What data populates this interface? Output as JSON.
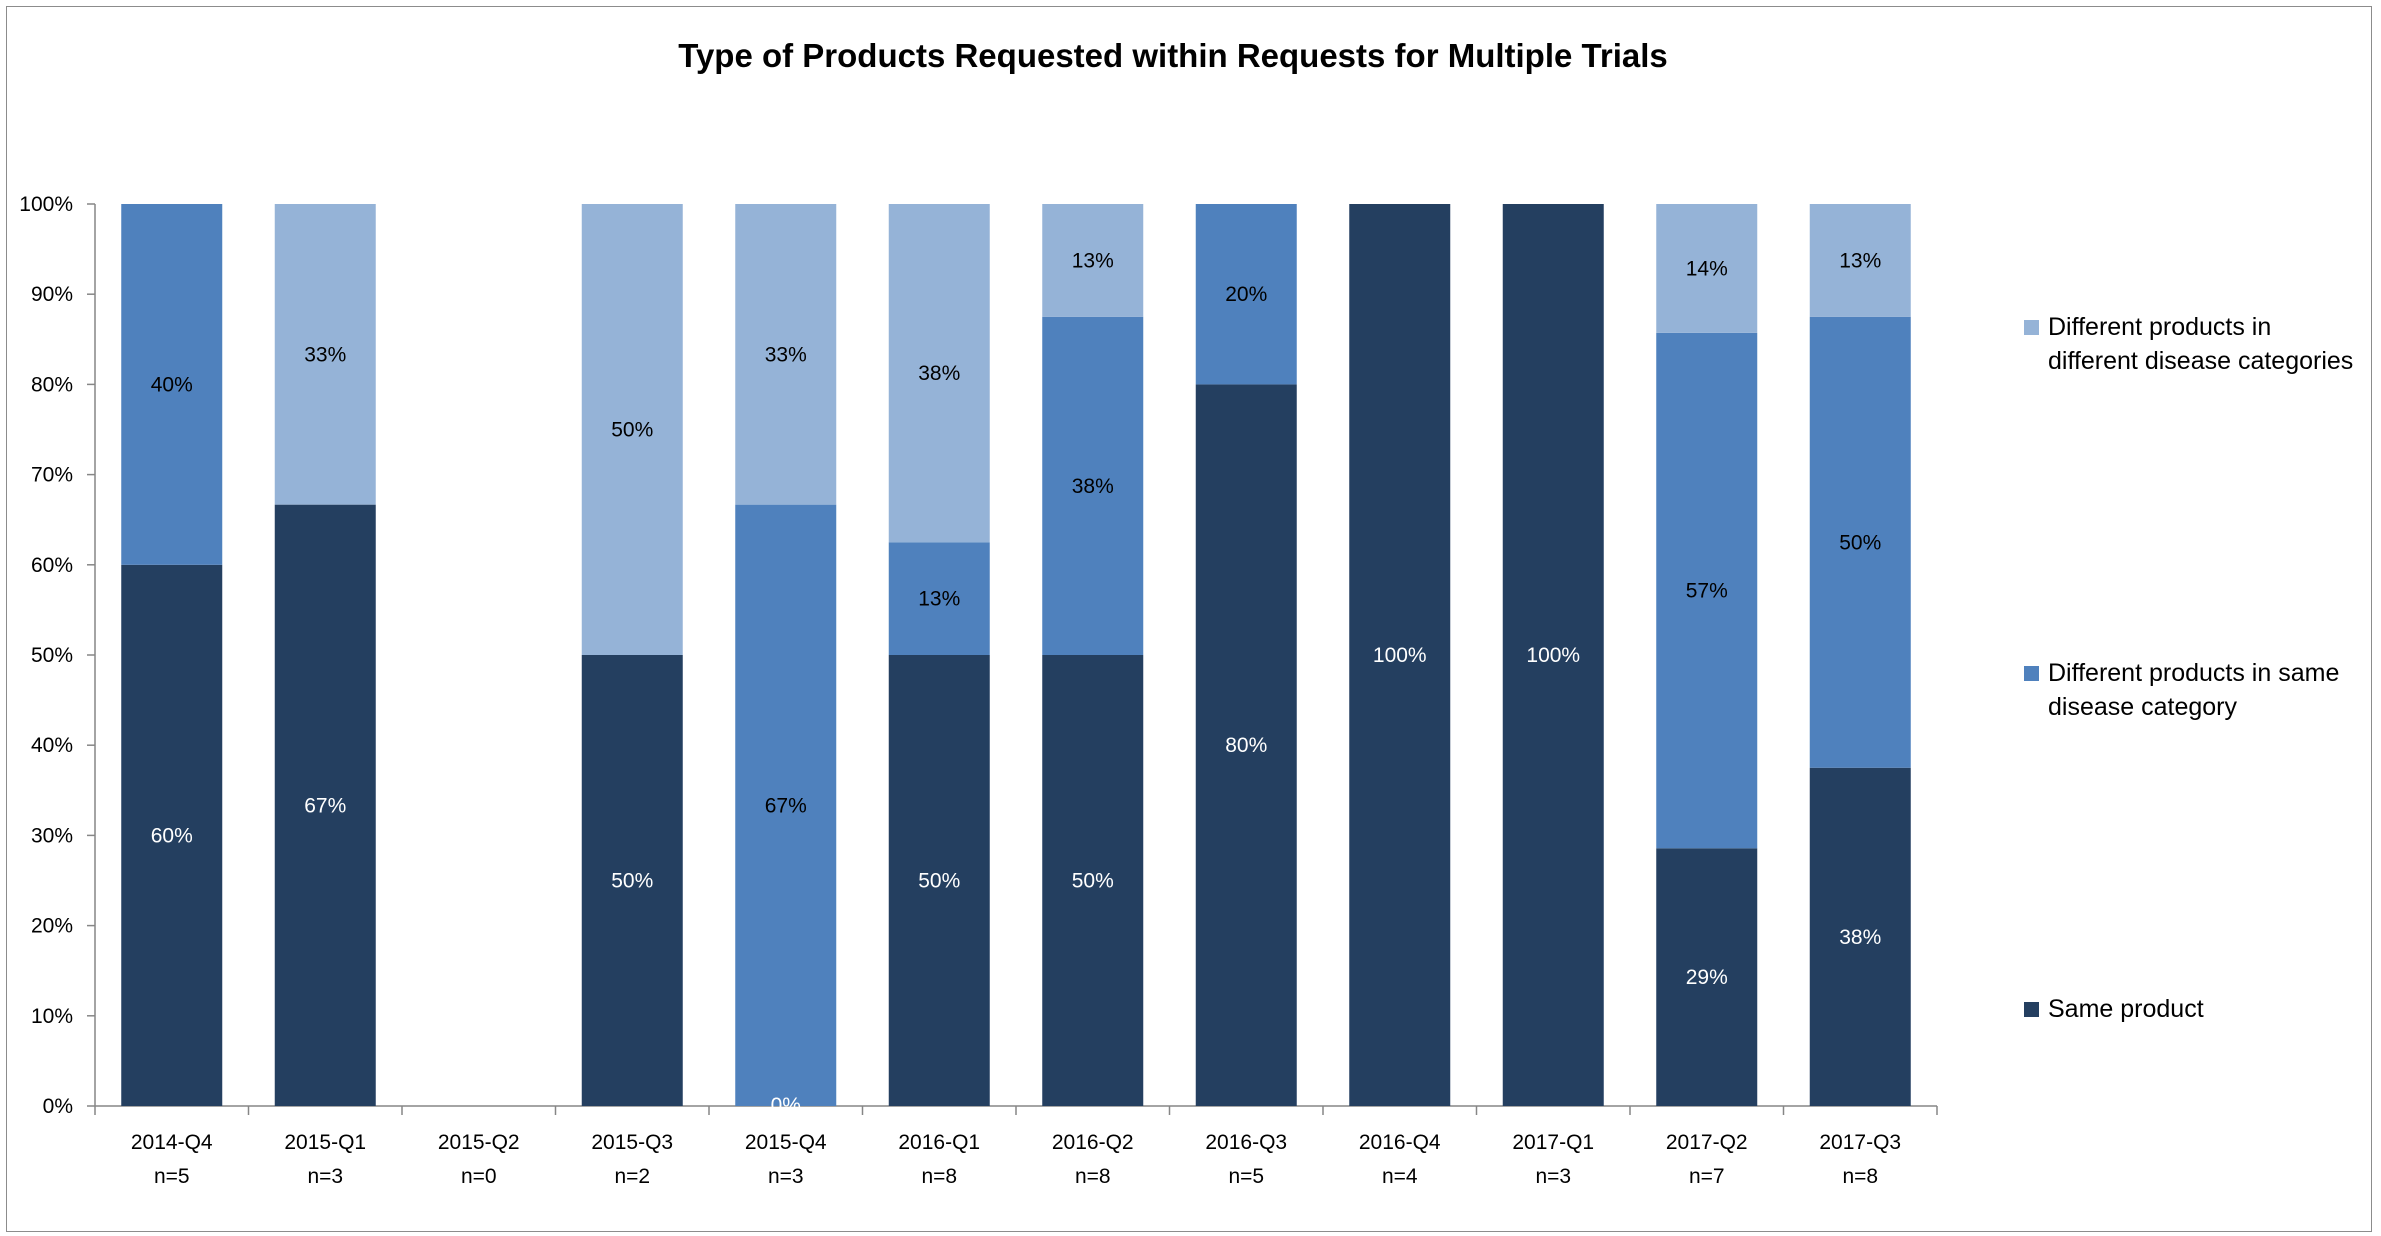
{
  "chart_data": {
    "type": "bar",
    "stacked": true,
    "title": "Type of Products Requested within Requests for Multiple Trials",
    "xlabel": "",
    "ylabel": "",
    "ylim": [
      0,
      100
    ],
    "y_ticks": [
      "0%",
      "10%",
      "20%",
      "30%",
      "40%",
      "50%",
      "60%",
      "70%",
      "80%",
      "90%",
      "100%"
    ],
    "categories": [
      "2014-Q4",
      "2015-Q1",
      "2015-Q2",
      "2015-Q3",
      "2015-Q4",
      "2016-Q1",
      "2016-Q2",
      "2016-Q3",
      "2016-Q4",
      "2017-Q1",
      "2017-Q2",
      "2017-Q3"
    ],
    "counts": [
      "n=5",
      "n=3",
      "n=0",
      "n=2",
      "n=3",
      "n=8",
      "n=8",
      "n=5",
      "n=4",
      "n=3",
      "n=7",
      "n=8"
    ],
    "series": [
      {
        "name": "Same product",
        "color": "#243f60",
        "label_color": "#ffffff",
        "values": [
          60,
          66.67,
          null,
          50,
          0,
          50,
          50,
          80,
          100,
          100,
          28.57,
          37.5
        ],
        "labels": [
          "60%",
          "67%",
          "",
          "50%",
          "0%",
          "50%",
          "50%",
          "80%",
          "100%",
          "100%",
          "29%",
          "38%"
        ]
      },
      {
        "name": "Different products in same disease category",
        "color": "#4f81bd",
        "label_color": "#000000",
        "values": [
          40,
          0,
          null,
          0,
          66.67,
          12.5,
          37.5,
          20,
          0,
          0,
          57.14,
          50
        ],
        "labels": [
          "40%",
          "",
          "",
          "",
          "67%",
          "13%",
          "38%",
          "20%",
          "",
          "",
          "57%",
          "50%"
        ]
      },
      {
        "name": "Different products in different disease categories",
        "color": "#95b3d7",
        "label_color": "#000000",
        "values": [
          0,
          33.33,
          null,
          50,
          33.33,
          37.5,
          12.5,
          0,
          0,
          0,
          14.29,
          12.5
        ],
        "labels": [
          "",
          "33%",
          "",
          "50%",
          "33%",
          "38%",
          "13%",
          "",
          "",
          "",
          "14%",
          "13%"
        ]
      }
    ],
    "legend": {
      "placement": "right",
      "entries": [
        {
          "lines": [
            "Different products in",
            "different disease categories"
          ],
          "color": "#95b3d7"
        },
        {
          "lines": [
            "Different products in same",
            "disease category"
          ],
          "color": "#4f81bd"
        },
        {
          "lines": [
            "Same product"
          ],
          "color": "#243f60"
        }
      ]
    },
    "grid": false
  }
}
